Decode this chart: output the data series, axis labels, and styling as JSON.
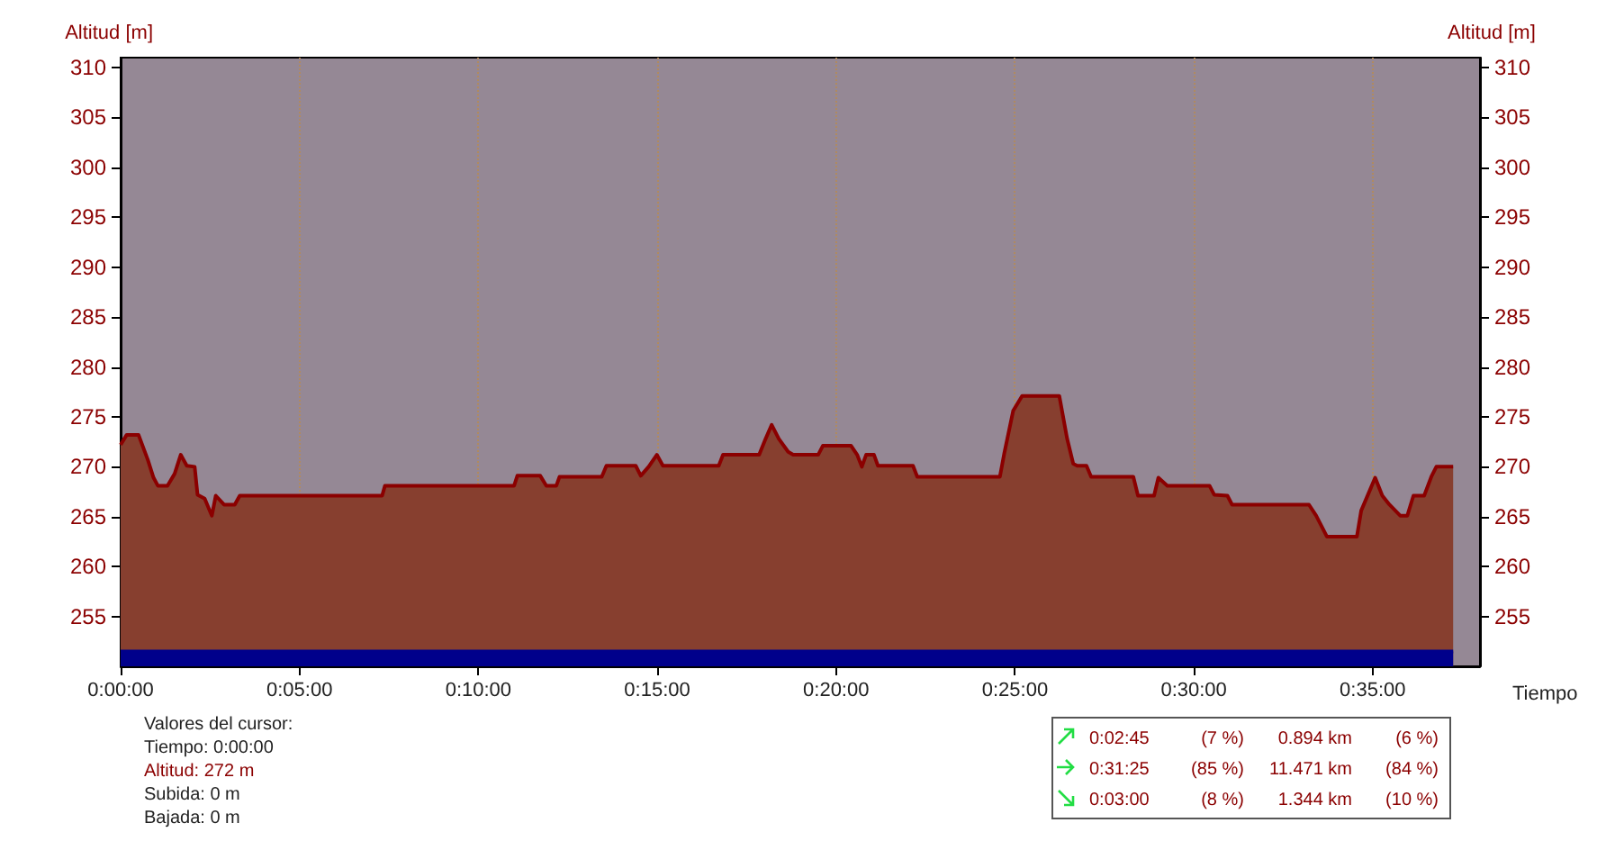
{
  "chart_data": {
    "type": "area",
    "xlabel": "Tiempo",
    "ylabel": "Altitud [m]",
    "y2label": "Altitud [m]",
    "xlim": [
      0,
      38
    ],
    "xticks": [
      {
        "value": 0,
        "label": "0:00:00"
      },
      {
        "value": 5,
        "label": "0:05:00"
      },
      {
        "value": 10,
        "label": "0:10:00"
      },
      {
        "value": 15,
        "label": "0:15:00"
      },
      {
        "value": 20,
        "label": "0:20:00"
      },
      {
        "value": 25,
        "label": "0:25:00"
      },
      {
        "value": 30,
        "label": "0:30:00"
      },
      {
        "value": 35,
        "label": "0:35:00"
      }
    ],
    "ylim": [
      250,
      311
    ],
    "yticks": [
      255,
      260,
      265,
      270,
      275,
      280,
      285,
      290,
      295,
      300,
      305,
      310
    ],
    "y2lim": [
      250,
      311
    ],
    "y2ticks": [
      255,
      260,
      265,
      270,
      275,
      280,
      285,
      290,
      295,
      300,
      305,
      310
    ],
    "grid": "x",
    "series": [
      {
        "color": "#873f2f",
        "x": [
          0,
          0.17,
          0.5,
          0.76,
          0.92,
          1.04,
          1.31,
          1.51,
          1.68,
          1.85,
          2.07,
          2.15,
          2.35,
          2.55,
          2.66,
          2.89,
          3.19,
          3.33,
          7.31,
          7.39,
          11.0,
          11.09,
          11.73,
          11.9,
          12.18,
          12.27,
          13.45,
          13.58,
          14.4,
          14.54,
          14.76,
          14.99,
          15.16,
          16.72,
          16.84,
          17.85,
          18.03,
          18.2,
          18.4,
          18.66,
          18.8,
          19.5,
          19.63,
          20.42,
          20.59,
          20.72,
          20.84,
          21.06,
          21.17,
          22.15,
          22.27,
          24.58,
          24.7,
          24.95,
          25.2,
          26.24,
          26.46,
          26.63,
          26.74,
          27.0,
          27.13,
          28.31,
          28.44,
          28.89,
          29.01,
          29.26,
          30.44,
          30.57,
          30.94,
          31.07,
          33.22,
          33.42,
          33.72,
          34.56,
          34.68,
          35.07,
          35.27,
          35.47,
          35.77,
          35.97,
          36.14,
          36.44,
          36.64,
          36.78,
          37.25
        ],
        "values": [
          272.2,
          273.2,
          273.2,
          270.7,
          268.9,
          268.1,
          268.1,
          269.3,
          271.2,
          270.1,
          270,
          267.2,
          266.8,
          265.1,
          267.1,
          266.2,
          266.2,
          267.1,
          267.1,
          268.1,
          268.1,
          269.1,
          269.1,
          268.1,
          268.1,
          269,
          269,
          270.1,
          270.1,
          269.1,
          270,
          271.2,
          270.1,
          270.1,
          271.2,
          271.2,
          272.8,
          274.2,
          272.8,
          271.5,
          271.2,
          271.2,
          272.1,
          272.1,
          271.2,
          270,
          271.2,
          271.2,
          270.1,
          270.1,
          269,
          269,
          271.3,
          275.6,
          277.1,
          277.1,
          272.8,
          270.3,
          270.1,
          270.1,
          269,
          269,
          267.1,
          267.1,
          268.9,
          268.1,
          268.1,
          267.2,
          267.1,
          266.2,
          266.2,
          265.1,
          263,
          263,
          265.6,
          268.9,
          267.1,
          266.2,
          265.1,
          265.1,
          267.1,
          267.1,
          269,
          270,
          270
        ]
      },
      {
        "color": "#00008b",
        "x": [
          0,
          37.25
        ],
        "values": [
          251.5,
          251.5
        ]
      }
    ],
    "annotations": [
      "Valores del cursor:",
      "Tiempo: 0:00:00",
      "Altitud: 272 m",
      "Subida: 0 m",
      "Bajada: 0 m",
      "0:02:45",
      "(7 %)",
      "0.894 km",
      "(6 %)",
      "0:31:25",
      "(85 %)",
      "11.471 km",
      "(84 %)",
      "0:03:00",
      "(8 %)",
      "1.344 km",
      "(10 %)"
    ]
  }
}
